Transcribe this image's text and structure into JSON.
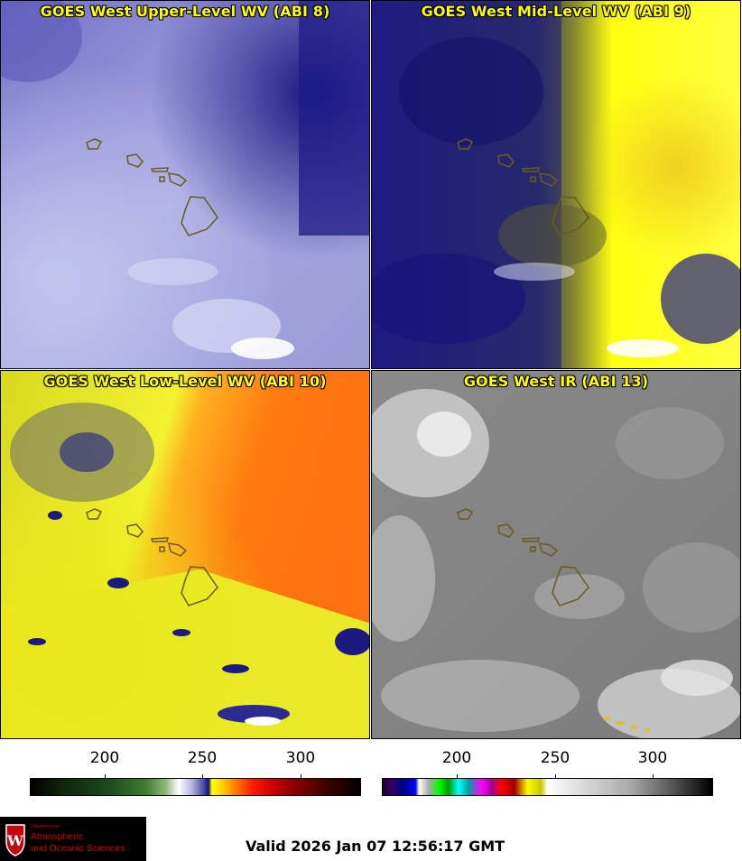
{
  "panels": [
    {
      "title": "GOES West Upper-Level WV (ABI 8)"
    },
    {
      "title": "GOES West Mid-Level WV (ABI 9)"
    },
    {
      "title": "GOES West Low-Level WV (ABI 10)"
    },
    {
      "title": "GOES West IR (ABI 13)"
    }
  ],
  "colorbars": [
    {
      "ticks": [
        "200",
        "250",
        "300"
      ]
    },
    {
      "ticks": [
        "200",
        "250",
        "300"
      ]
    }
  ],
  "logo": {
    "line1": "Department of",
    "line2": "Atmospheric",
    "line3": "and Oceanic Sciences"
  },
  "valid_time": "Valid 2026 Jan 07 12:56:17 GMT",
  "colors": {
    "title_yellow": "#ffff00",
    "island_outline": "#6b5a1e",
    "logo_red": "#c5050c"
  }
}
